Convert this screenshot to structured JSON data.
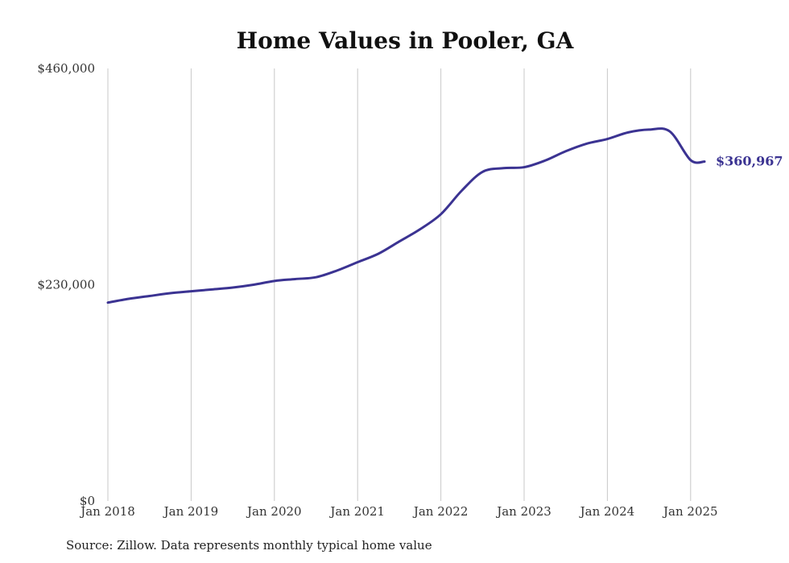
{
  "chart_data": {
    "type": "line",
    "title": "Home Values in Pooler, GA",
    "xlabel": "",
    "ylabel": "",
    "ylim": [
      0,
      460000
    ],
    "y_ticks": [
      0,
      230000,
      460000
    ],
    "y_tick_labels": [
      "$0",
      "$230,000",
      "$460,000"
    ],
    "x_ticks": [
      2018,
      2019,
      2020,
      2021,
      2022,
      2023,
      2024,
      2025
    ],
    "x_tick_labels": [
      "Jan 2018",
      "Jan 2019",
      "Jan 2020",
      "Jan 2021",
      "Jan 2022",
      "Jan 2023",
      "Jan 2024",
      "Jan 2025"
    ],
    "grid": "vertical",
    "line_color": "#3b3392",
    "series": [
      {
        "x": [
          "Jan 2018",
          "Apr 2018",
          "Jul 2018",
          "Oct 2018",
          "Jan 2019",
          "Apr 2019",
          "Jul 2019",
          "Oct 2019",
          "Jan 2020",
          "Apr 2020",
          "Jul 2020",
          "Oct 2020",
          "Jan 2021",
          "Apr 2021",
          "Jul 2021",
          "Oct 2021",
          "Jan 2022",
          "Apr 2022",
          "Jul 2022",
          "Oct 2022",
          "Jan 2023",
          "Apr 2023",
          "Jul 2023",
          "Oct 2023",
          "Jan 2024",
          "Apr 2024",
          "Jul 2024",
          "Oct 2024",
          "Jan 2025",
          "Mar 2025"
        ],
        "values": [
          211000,
          215000,
          218000,
          221000,
          223000,
          225000,
          227000,
          230000,
          234000,
          236000,
          238000,
          245000,
          254000,
          263000,
          276000,
          289000,
          305000,
          330000,
          350000,
          354000,
          355000,
          362000,
          372000,
          380000,
          385000,
          392000,
          395000,
          393000,
          362500,
          360967
        ]
      }
    ],
    "end_label": "$360,967"
  },
  "source": "Source: Zillow. Data represents monthly typical home value"
}
